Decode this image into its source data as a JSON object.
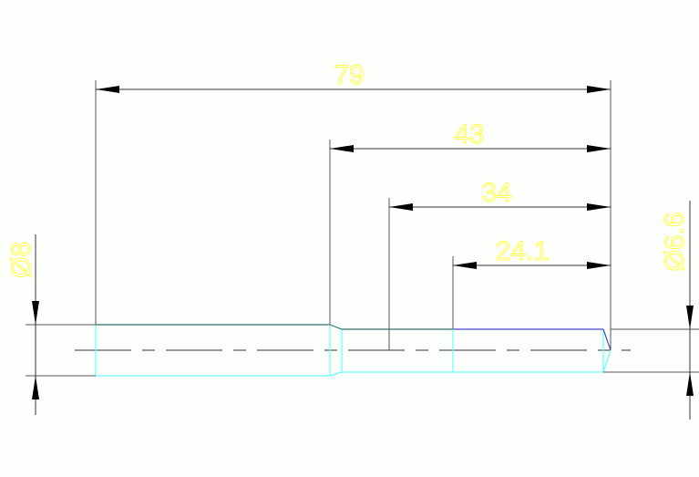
{
  "drawing": {
    "dimensions": {
      "overall_length": "79",
      "length_43": "43",
      "length_34": "34",
      "length_24_1": "24.1",
      "diameter_left": "Ø8",
      "diameter_right": "Ø6.6"
    },
    "colors": {
      "background": "#fdfffd",
      "dimension_line": "#555555",
      "dimension_text": "#ffff44",
      "part_outline_cyan": "#66ffff",
      "part_outline_dark": "#2f6f6f",
      "part_outline_blue": "#4444cc",
      "centerline": "#999999"
    }
  }
}
